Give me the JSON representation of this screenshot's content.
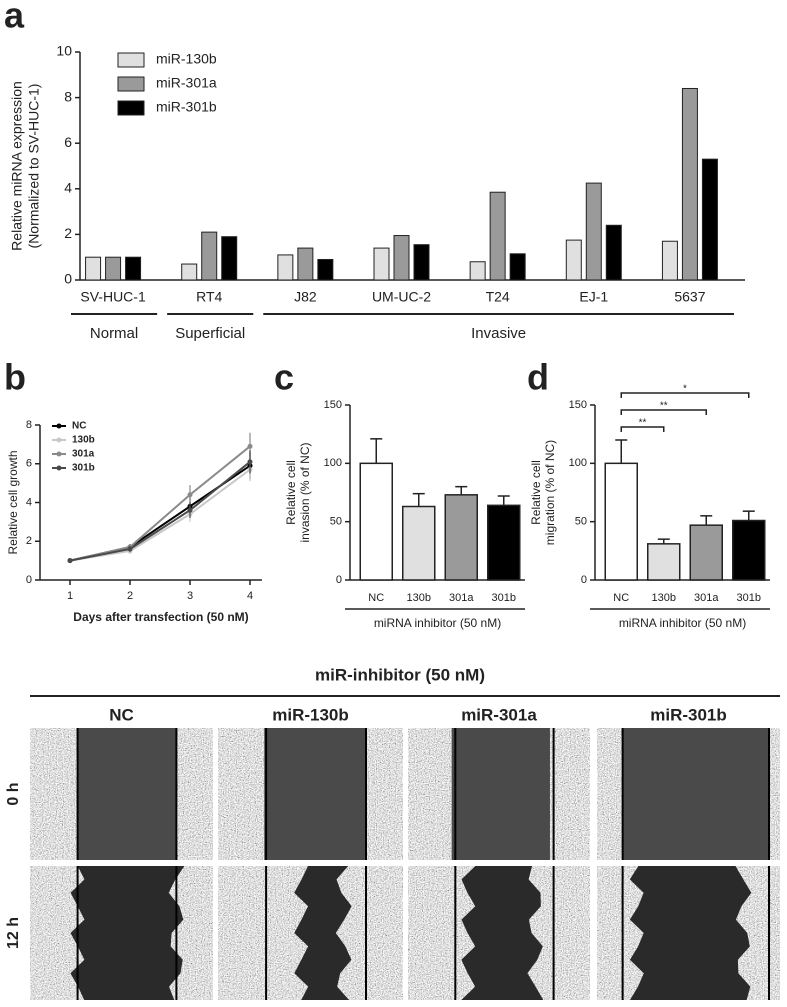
{
  "chart_data": [
    {
      "panel": "a",
      "type": "bar",
      "ylabel": [
        "Relative miRNA expression",
        "(Normalized to SV-HUC-1)"
      ],
      "categories": [
        "SV-HUC-1",
        "RT4",
        "J82",
        "UM-UC-2",
        "T24",
        "EJ-1",
        "5637"
      ],
      "series": [
        {
          "name": "miR-130b",
          "color": "#e0e0e0",
          "values": [
            1.0,
            0.7,
            1.1,
            1.4,
            0.8,
            1.75,
            1.7
          ]
        },
        {
          "name": "miR-301a",
          "color": "#9a9a9a",
          "values": [
            1.0,
            2.1,
            1.4,
            1.95,
            3.85,
            4.25,
            8.4
          ]
        },
        {
          "name": "miR-301b",
          "color": "#000000",
          "values": [
            1.0,
            1.9,
            0.9,
            1.55,
            1.15,
            2.4,
            5.3
          ]
        }
      ],
      "groups": [
        {
          "name": "Normal",
          "categories": [
            "SV-HUC-1"
          ]
        },
        {
          "name": "Superficial",
          "categories": [
            "RT4"
          ]
        },
        {
          "name": "Invasive",
          "categories": [
            "J82",
            "UM-UC-2",
            "T24",
            "EJ-1",
            "5637"
          ]
        }
      ],
      "ylim": [
        0,
        10
      ],
      "yticks": [
        0,
        2,
        4,
        6,
        8,
        10
      ],
      "legend": "upper left"
    },
    {
      "panel": "b",
      "type": "line",
      "xlabel": "Days after transfection (50 nM)",
      "ylabel": [
        "Relative cell growth"
      ],
      "x": [
        1,
        2,
        3,
        4
      ],
      "series": [
        {
          "name": "NC",
          "color": "#000000",
          "values": [
            1.0,
            1.7,
            3.8,
            5.9
          ],
          "errors": [
            0.1,
            0.15,
            0.5,
            0.7
          ]
        },
        {
          "name": "130b",
          "color": "#c8c8c8",
          "values": [
            1.0,
            1.5,
            3.4,
            5.7
          ],
          "errors": [
            0.1,
            0.15,
            0.4,
            0.6
          ]
        },
        {
          "name": "301a",
          "color": "#8a8a8a",
          "values": [
            1.0,
            1.7,
            4.4,
            6.9
          ],
          "errors": [
            0.1,
            0.15,
            0.5,
            0.7
          ]
        },
        {
          "name": "301b",
          "color": "#4a4a4a",
          "values": [
            1.0,
            1.6,
            3.6,
            6.1
          ],
          "errors": [
            0.1,
            0.15,
            0.4,
            0.6
          ]
        }
      ],
      "xlim": [
        0.5,
        4.2
      ],
      "xticks": [
        1,
        2,
        3,
        4
      ],
      "ylim": [
        0,
        8
      ],
      "yticks": [
        0,
        2,
        4,
        6,
        8
      ],
      "legend": "upper left"
    },
    {
      "panel": "c",
      "type": "bar",
      "xlabel": "miRNA inhibitor (50 nM)",
      "ylabel": [
        "Relative cell",
        "invasion (% of NC)"
      ],
      "categories": [
        "NC",
        "130b",
        "301a",
        "301b"
      ],
      "values": [
        100,
        63,
        73,
        64
      ],
      "errors": [
        21,
        11,
        7,
        8
      ],
      "colors": [
        "#ffffff",
        "#e0e0e0",
        "#9a9a9a",
        "#000000"
      ],
      "ylim": [
        0,
        150
      ],
      "yticks": [
        0,
        50,
        100,
        150
      ]
    },
    {
      "panel": "d",
      "type": "bar",
      "xlabel": "miRNA inhibitor (50 nM)",
      "ylabel": [
        "Relative cell",
        "migration (% of NC)"
      ],
      "categories": [
        "NC",
        "130b",
        "301a",
        "301b"
      ],
      "values": [
        100,
        31,
        47,
        51
      ],
      "errors": [
        20,
        4,
        8,
        8
      ],
      "colors": [
        "#ffffff",
        "#e0e0e0",
        "#9a9a9a",
        "#000000"
      ],
      "significance": [
        {
          "from": "NC",
          "to": "130b",
          "label": "**"
        },
        {
          "from": "NC",
          "to": "301a",
          "label": "**"
        },
        {
          "from": "NC",
          "to": "301b",
          "label": "*"
        }
      ],
      "ylim": [
        0,
        150
      ],
      "yticks": [
        0,
        50,
        100,
        150
      ]
    }
  ],
  "wound_healing": {
    "title": "miR-inhibitor (50 nM)",
    "columns": [
      "NC",
      "miR-130b",
      "miR-301a",
      "miR-301b"
    ],
    "rows": [
      "0 h",
      "12 h"
    ]
  }
}
